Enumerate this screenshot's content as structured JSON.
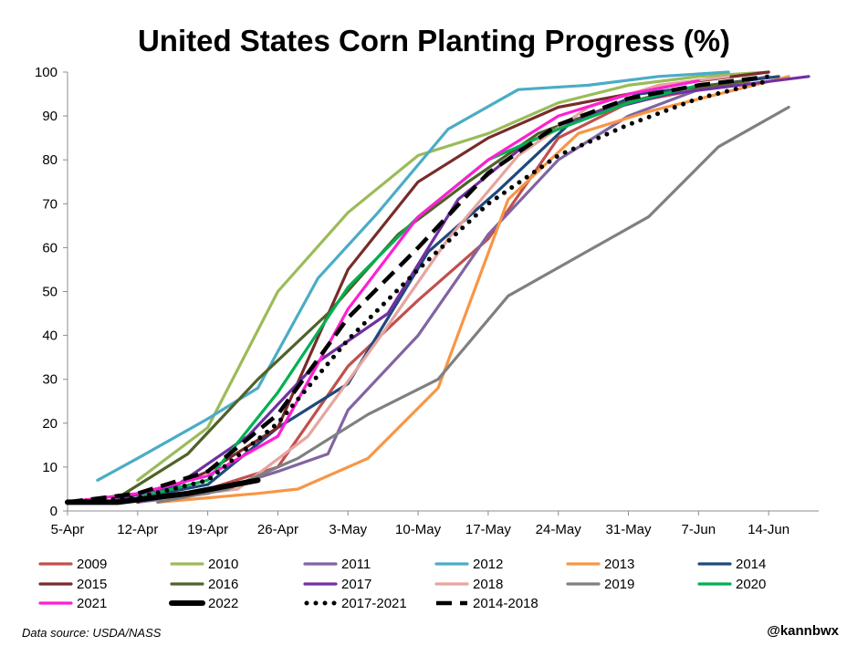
{
  "chart_data": {
    "type": "line",
    "title": "United States Corn Planting Progress (%)",
    "xlabel": "",
    "ylabel": "",
    "ylim": [
      0,
      100
    ],
    "y_ticks": [
      0,
      10,
      20,
      30,
      40,
      50,
      60,
      70,
      80,
      90,
      100
    ],
    "x_range": [
      "2000-04-05",
      "2000-06-19"
    ],
    "x_ticks": [
      {
        "date": "2000-04-05",
        "label": "5-Apr"
      },
      {
        "date": "2000-04-12",
        "label": "12-Apr"
      },
      {
        "date": "2000-04-19",
        "label": "19-Apr"
      },
      {
        "date": "2000-04-26",
        "label": "26-Apr"
      },
      {
        "date": "2000-05-03",
        "label": "3-May"
      },
      {
        "date": "2000-05-10",
        "label": "10-May"
      },
      {
        "date": "2000-05-17",
        "label": "17-May"
      },
      {
        "date": "2000-05-24",
        "label": "24-May"
      },
      {
        "date": "2000-05-31",
        "label": "31-May"
      },
      {
        "date": "2000-06-07",
        "label": "7-Jun"
      },
      {
        "date": "2000-06-14",
        "label": "14-Jun"
      }
    ],
    "grid": false,
    "legend_position": "bottom",
    "series": [
      {
        "name": "2009",
        "color": "#c0504d",
        "style": "solid",
        "points": [
          [
            "2000-04-12",
            2
          ],
          [
            "2000-04-19",
            5
          ],
          [
            "2000-04-26",
            10
          ],
          [
            "2000-05-03",
            33
          ],
          [
            "2000-05-10",
            48
          ],
          [
            "2000-05-17",
            62
          ],
          [
            "2000-05-24",
            85
          ],
          [
            "2000-05-31",
            93
          ],
          [
            "2000-06-07",
            96
          ],
          [
            "2000-06-14",
            99
          ]
        ]
      },
      {
        "name": "2010",
        "color": "#9bbb59",
        "style": "solid",
        "points": [
          [
            "2000-04-12",
            7
          ],
          [
            "2000-04-19",
            19
          ],
          [
            "2000-04-26",
            50
          ],
          [
            "2000-05-03",
            68
          ],
          [
            "2000-05-10",
            81
          ],
          [
            "2000-05-17",
            86
          ],
          [
            "2000-05-24",
            93
          ],
          [
            "2000-05-31",
            97
          ],
          [
            "2000-06-07",
            99
          ],
          [
            "2000-06-14",
            100
          ]
        ]
      },
      {
        "name": "2011",
        "color": "#8064a2",
        "style": "solid",
        "points": [
          [
            "2000-04-12",
            2
          ],
          [
            "2000-04-19",
            4
          ],
          [
            "2000-04-26",
            9
          ],
          [
            "2000-05-01",
            13
          ],
          [
            "2000-05-03",
            23
          ],
          [
            "2000-05-10",
            40
          ],
          [
            "2000-05-17",
            63
          ],
          [
            "2000-05-24",
            80
          ],
          [
            "2000-05-31",
            90
          ],
          [
            "2000-06-07",
            96
          ],
          [
            "2000-06-14",
            99
          ]
        ]
      },
      {
        "name": "2012",
        "color": "#4bacc6",
        "style": "solid",
        "points": [
          [
            "2000-04-08",
            7
          ],
          [
            "2000-04-12",
            12
          ],
          [
            "2000-04-19",
            21
          ],
          [
            "2000-04-24",
            28
          ],
          [
            "2000-04-30",
            53
          ],
          [
            "2000-05-06",
            68
          ],
          [
            "2000-05-13",
            87
          ],
          [
            "2000-05-20",
            96
          ],
          [
            "2000-05-27",
            97
          ],
          [
            "2000-06-03",
            99
          ],
          [
            "2000-06-10",
            100
          ]
        ]
      },
      {
        "name": "2013",
        "color": "#f79646",
        "style": "solid",
        "points": [
          [
            "2000-04-14",
            2
          ],
          [
            "2000-04-19",
            3
          ],
          [
            "2000-04-24",
            4
          ],
          [
            "2000-04-28",
            5
          ],
          [
            "2000-05-05",
            12
          ],
          [
            "2000-05-12",
            28
          ],
          [
            "2000-05-19",
            71
          ],
          [
            "2000-05-26",
            86
          ],
          [
            "2000-06-02",
            91
          ],
          [
            "2000-06-09",
            95
          ],
          [
            "2000-06-16",
            99
          ]
        ]
      },
      {
        "name": "2014",
        "color": "#1f497d",
        "style": "solid",
        "points": [
          [
            "2000-04-12",
            3
          ],
          [
            "2000-04-19",
            6
          ],
          [
            "2000-04-26",
            19
          ],
          [
            "2000-05-03",
            29
          ],
          [
            "2000-05-11",
            59
          ],
          [
            "2000-05-18",
            73
          ],
          [
            "2000-05-25",
            88
          ],
          [
            "2000-06-01",
            95
          ],
          [
            "2000-06-08",
            97
          ],
          [
            "2000-06-15",
            99
          ]
        ]
      },
      {
        "name": "2015",
        "color": "#772c2a",
        "style": "solid",
        "points": [
          [
            "2000-04-12",
            2
          ],
          [
            "2000-04-19",
            9
          ],
          [
            "2000-04-26",
            19
          ],
          [
            "2000-05-03",
            55
          ],
          [
            "2000-05-10",
            75
          ],
          [
            "2000-05-17",
            85
          ],
          [
            "2000-05-24",
            92
          ],
          [
            "2000-05-31",
            95
          ],
          [
            "2000-06-07",
            98
          ],
          [
            "2000-06-14",
            100
          ]
        ]
      },
      {
        "name": "2016",
        "color": "#4f6228",
        "style": "solid",
        "points": [
          [
            "2000-04-10",
            3
          ],
          [
            "2000-04-17",
            13
          ],
          [
            "2000-04-24",
            30
          ],
          [
            "2000-05-01",
            45
          ],
          [
            "2000-05-08",
            63
          ],
          [
            "2000-05-15",
            75
          ],
          [
            "2000-05-22",
            86
          ],
          [
            "2000-05-29",
            92
          ],
          [
            "2000-06-05",
            96
          ],
          [
            "2000-06-12",
            98
          ]
        ]
      },
      {
        "name": "2017",
        "color": "#7030a0",
        "style": "solid",
        "points": [
          [
            "2000-04-09",
            2
          ],
          [
            "2000-04-16",
            6
          ],
          [
            "2000-04-23",
            17
          ],
          [
            "2000-04-30",
            34
          ],
          [
            "2000-05-07",
            45
          ],
          [
            "2000-05-14",
            71
          ],
          [
            "2000-05-21",
            84
          ],
          [
            "2000-05-28",
            91
          ],
          [
            "2000-06-04",
            95
          ],
          [
            "2000-06-11",
            97
          ],
          [
            "2000-06-18",
            99
          ]
        ]
      },
      {
        "name": "2018",
        "color": "#e6a5a0",
        "style": "solid",
        "points": [
          [
            "2000-04-08",
            2
          ],
          [
            "2000-04-15",
            3
          ],
          [
            "2000-04-22",
            5
          ],
          [
            "2000-04-29",
            17
          ],
          [
            "2000-05-06",
            39
          ],
          [
            "2000-05-13",
            62
          ],
          [
            "2000-05-20",
            81
          ],
          [
            "2000-05-27",
            92
          ],
          [
            "2000-06-03",
            97
          ],
          [
            "2000-06-10",
            99
          ]
        ]
      },
      {
        "name": "2019",
        "color": "#808080",
        "style": "solid",
        "points": [
          [
            "2000-04-14",
            2
          ],
          [
            "2000-04-21",
            5
          ],
          [
            "2000-04-28",
            12
          ],
          [
            "2000-05-05",
            22
          ],
          [
            "2000-05-12",
            30
          ],
          [
            "2000-05-19",
            49
          ],
          [
            "2000-05-26",
            58
          ],
          [
            "2000-06-02",
            67
          ],
          [
            "2000-06-09",
            83
          ],
          [
            "2000-06-16",
            92
          ]
        ]
      },
      {
        "name": "2020",
        "color": "#00b050",
        "style": "solid",
        "points": [
          [
            "2000-04-12",
            3
          ],
          [
            "2000-04-19",
            7
          ],
          [
            "2000-04-26",
            27
          ],
          [
            "2000-05-03",
            51
          ],
          [
            "2000-05-10",
            67
          ],
          [
            "2000-05-17",
            80
          ],
          [
            "2000-05-24",
            87
          ],
          [
            "2000-05-31",
            93
          ],
          [
            "2000-06-07",
            97
          ]
        ]
      },
      {
        "name": "2021",
        "color": "#ff1fd2",
        "style": "solid",
        "points": [
          [
            "2000-04-05",
            2
          ],
          [
            "2000-04-12",
            4
          ],
          [
            "2000-04-19",
            8
          ],
          [
            "2000-04-26",
            17
          ],
          [
            "2000-05-03",
            46
          ],
          [
            "2000-05-10",
            67
          ],
          [
            "2000-05-17",
            80
          ],
          [
            "2000-05-24",
            90
          ],
          [
            "2000-05-31",
            95
          ],
          [
            "2000-06-07",
            98
          ]
        ]
      },
      {
        "name": "2022",
        "color": "#000000",
        "style": "thick",
        "points": [
          [
            "2000-04-05",
            2
          ],
          [
            "2000-04-10",
            2
          ],
          [
            "2000-04-17",
            4
          ],
          [
            "2000-04-24",
            7
          ]
        ]
      },
      {
        "name": "2017-2021",
        "color": "#000000",
        "style": "dotted",
        "points": [
          [
            "2000-04-05",
            2
          ],
          [
            "2000-04-12",
            3
          ],
          [
            "2000-04-19",
            7
          ],
          [
            "2000-04-26",
            20
          ],
          [
            "2000-05-03",
            39
          ],
          [
            "2000-05-10",
            55
          ],
          [
            "2000-05-17",
            70
          ],
          [
            "2000-05-24",
            81
          ],
          [
            "2000-05-31",
            88
          ],
          [
            "2000-06-07",
            94
          ],
          [
            "2000-06-14",
            98
          ]
        ]
      },
      {
        "name": "2014-2018",
        "color": "#000000",
        "style": "dashed",
        "points": [
          [
            "2000-04-05",
            2
          ],
          [
            "2000-04-12",
            4
          ],
          [
            "2000-04-19",
            9
          ],
          [
            "2000-04-26",
            22
          ],
          [
            "2000-05-03",
            44
          ],
          [
            "2000-05-10",
            60
          ],
          [
            "2000-05-17",
            77
          ],
          [
            "2000-05-24",
            88
          ],
          [
            "2000-05-31",
            94
          ],
          [
            "2000-06-07",
            97
          ],
          [
            "2000-06-14",
            99
          ]
        ]
      }
    ]
  },
  "footer": {
    "source": "Data source: USDA/NASS",
    "credit": "@kannbwx"
  }
}
